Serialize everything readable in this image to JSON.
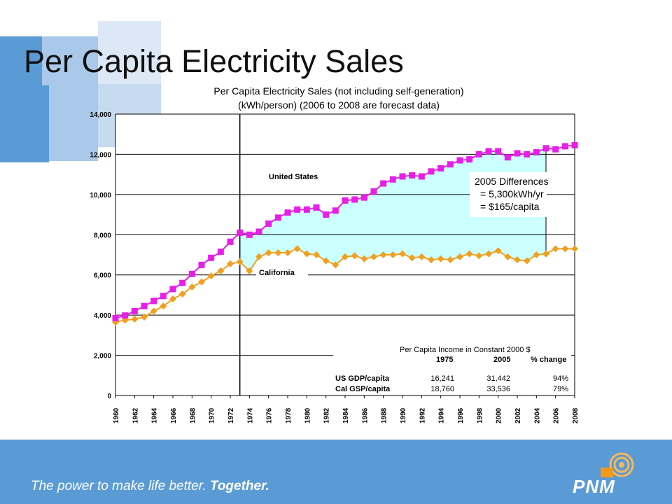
{
  "slide": {
    "title": "Per Capita Electricity Sales",
    "tagline_part1": "The power to make life better.",
    "tagline_part2": "Together.",
    "logo_text": "PNM",
    "logo_icon": "pnm-sun-swirl-icon",
    "colors": {
      "footer": "#5b9bd5",
      "deco": "#a9c8ea",
      "us_series": "#e61ee6",
      "ca_series": "#f0a020",
      "fill": "#ccffff"
    }
  },
  "chart_data": {
    "type": "line",
    "title_line1": "Per Capita Electricity Sales (not including self-generation)",
    "title_line2": "(kWh/person) (2006 to 2008 are forecast data)",
    "ylim": [
      0,
      14000
    ],
    "yticks": [
      "0",
      "2,000",
      "4,000",
      "6,000",
      "8,000",
      "10,000",
      "12,000",
      "14,000"
    ],
    "ytick_values": [
      0,
      2000,
      4000,
      6000,
      8000,
      10000,
      12000,
      14000
    ],
    "xticks": [
      "1960",
      "1962",
      "1964",
      "1966",
      "1968",
      "1970",
      "1972",
      "1974",
      "1976",
      "1978",
      "1980",
      "1982",
      "1984",
      "1986",
      "1988",
      "1990",
      "1992",
      "1994",
      "1996",
      "1998",
      "2000",
      "2002",
      "2004",
      "2006",
      "2008"
    ],
    "x": [
      1960,
      1961,
      1962,
      1963,
      1964,
      1965,
      1966,
      1967,
      1968,
      1969,
      1970,
      1971,
      1972,
      1973,
      1974,
      1975,
      1976,
      1977,
      1978,
      1979,
      1980,
      1981,
      1982,
      1983,
      1984,
      1985,
      1986,
      1987,
      1988,
      1989,
      1990,
      1991,
      1992,
      1993,
      1994,
      1995,
      1996,
      1997,
      1998,
      1999,
      2000,
      2001,
      2002,
      2003,
      2004,
      2005,
      2006,
      2007,
      2008
    ],
    "series": [
      {
        "name": "United States",
        "values": [
          3850,
          3980,
          4200,
          4450,
          4700,
          4950,
          5300,
          5600,
          6050,
          6500,
          6850,
          7150,
          7650,
          8100,
          8000,
          8150,
          8550,
          8850,
          9100,
          9250,
          9250,
          9350,
          9000,
          9200,
          9700,
          9750,
          9850,
          10150,
          10550,
          10750,
          10900,
          10950,
          10900,
          11150,
          11300,
          11500,
          11700,
          11750,
          12000,
          12150,
          12150,
          11850,
          12050,
          12000,
          12100,
          12300,
          12250,
          12400,
          12450
        ]
      },
      {
        "name": "California",
        "values": [
          3650,
          3750,
          3800,
          3900,
          4200,
          4450,
          4800,
          5050,
          5400,
          5650,
          5950,
          6200,
          6550,
          6650,
          6200,
          6900,
          7100,
          7100,
          7100,
          7300,
          7050,
          7000,
          6700,
          6500,
          6900,
          6950,
          6800,
          6900,
          7000,
          7000,
          7050,
          6850,
          6900,
          6750,
          6800,
          6750,
          6900,
          7050,
          6950,
          7050,
          7200,
          6900,
          6750,
          6700,
          7000,
          7050,
          7300,
          7300,
          7300
        ]
      }
    ],
    "marker_year": 1973,
    "shade_from_year": 1973,
    "shade_to_year": 2005,
    "annotation_box": [
      "2005 Differences",
      "= 5,300kWh/yr",
      "= $165/capita"
    ],
    "income_table": {
      "title": "Per Capita Income in Constant 2000 $",
      "headers": [
        "",
        "1975",
        "2005",
        "% change"
      ],
      "rows": [
        [
          "US GDP/capita",
          "16,241",
          "31,442",
          "94%"
        ],
        [
          "Cal GSP/capita",
          "18,760",
          "33,536",
          "79%"
        ]
      ]
    }
  }
}
